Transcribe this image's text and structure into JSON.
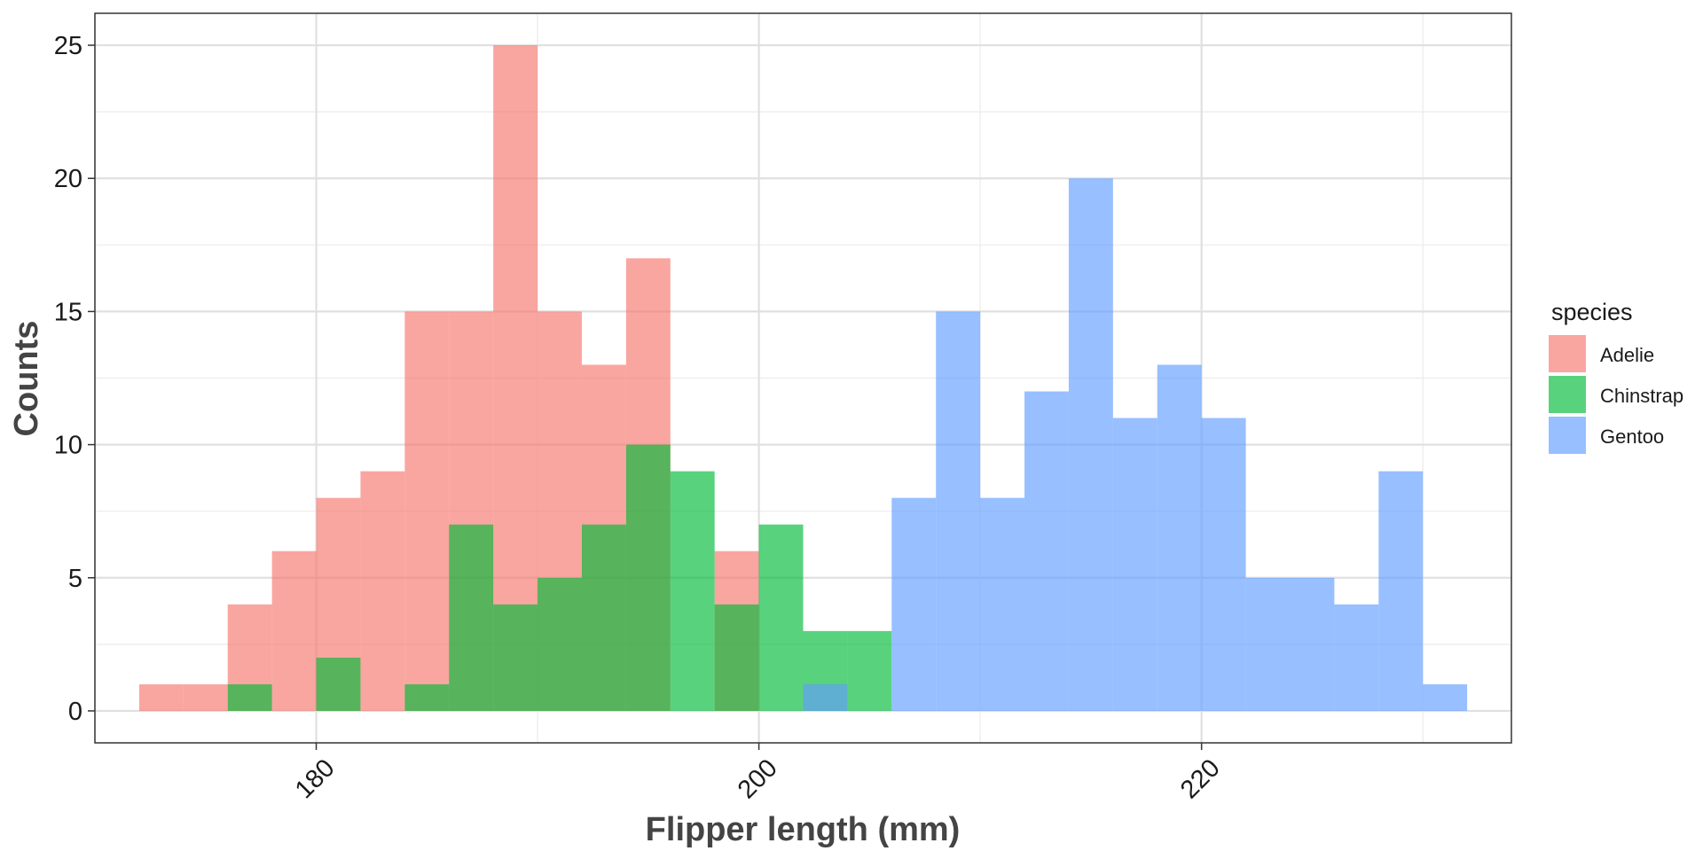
{
  "chart_data": {
    "type": "bar",
    "subtype": "overlapping-histogram",
    "title": "",
    "xlabel": "Flipper length (mm)",
    "ylabel": "Counts",
    "xlim": [
      170,
      234
    ],
    "ylim": [
      -1.2,
      26.2
    ],
    "bin_width": 2,
    "bin_start": 172,
    "x_ticks": [
      180,
      200,
      220
    ],
    "x_tick_labels": [
      "180",
      "200",
      "220"
    ],
    "y_ticks": [
      0,
      5,
      10,
      15,
      20,
      25
    ],
    "y_tick_labels": [
      "0",
      "5",
      "10",
      "15",
      "20",
      "25"
    ],
    "grid": true,
    "legend": {
      "title": "species",
      "position": "right"
    },
    "series": [
      {
        "name": "Adelie",
        "color": "#F8766D",
        "values": [
          1,
          1,
          4,
          6,
          8,
          9,
          15,
          15,
          25,
          15,
          13,
          17,
          0,
          6,
          0,
          0,
          0,
          0,
          0,
          0,
          0,
          0,
          0,
          0,
          0,
          0,
          0,
          0,
          0,
          0
        ]
      },
      {
        "name": "Chinstrap",
        "color": "#00BA38",
        "values": [
          0,
          0,
          1,
          0,
          2,
          0,
          1,
          7,
          4,
          5,
          7,
          10,
          9,
          4,
          7,
          3,
          3,
          0,
          0,
          0,
          0,
          0,
          0,
          0,
          0,
          0,
          0,
          0,
          0,
          0
        ]
      },
      {
        "name": "Gentoo",
        "color": "#619CFF",
        "values": [
          0,
          0,
          0,
          0,
          0,
          0,
          0,
          0,
          0,
          0,
          0,
          0,
          0,
          0,
          0,
          1,
          0,
          8,
          15,
          8,
          12,
          20,
          11,
          13,
          11,
          5,
          5,
          4,
          9,
          1
        ]
      }
    ]
  }
}
